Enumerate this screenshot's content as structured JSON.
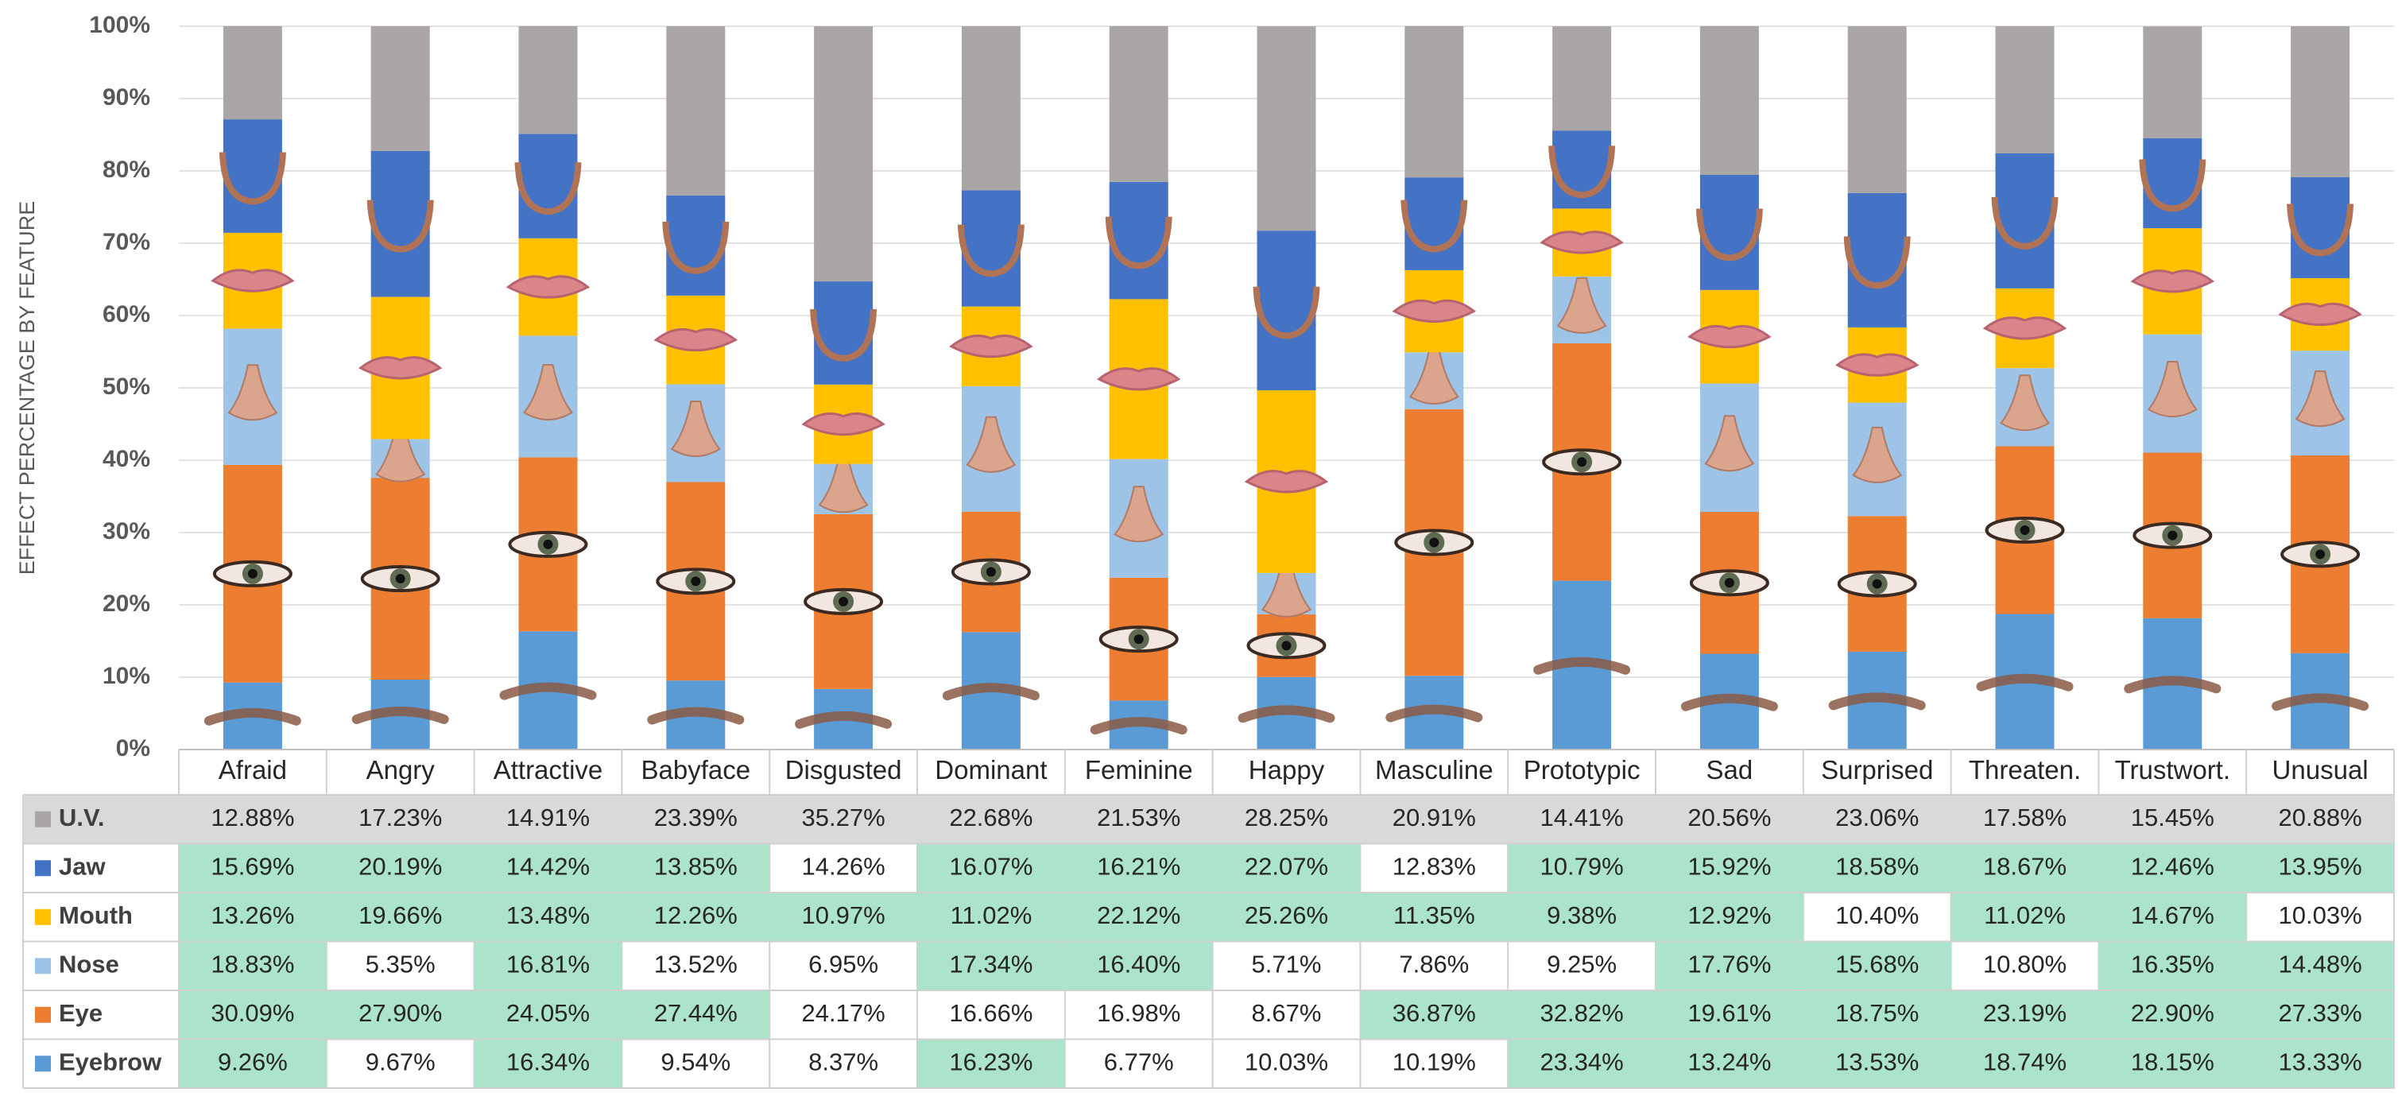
{
  "chart_data": {
    "type": "stacked_bar_100",
    "y_label": "EFFECT PERCENTAGE BY FEATURE",
    "categories": [
      "Afraid",
      "Angry",
      "Attractive",
      "Babyface",
      "Disgusted",
      "Dominant",
      "Feminine",
      "Happy",
      "Masculine",
      "Prototypic",
      "Sad",
      "Surprised",
      "Threaten.",
      "Trustwort.",
      "Unusual"
    ],
    "ylim": [
      0,
      100
    ],
    "yticks": [
      {
        "value": 0,
        "label": "0%"
      },
      {
        "value": 10,
        "label": "10%"
      },
      {
        "value": 20,
        "label": "20%"
      },
      {
        "value": 30,
        "label": "30%"
      },
      {
        "value": 40,
        "label": "40%"
      },
      {
        "value": 50,
        "label": "50%"
      },
      {
        "value": 60,
        "label": "60%"
      },
      {
        "value": 70,
        "label": "70%"
      },
      {
        "value": 80,
        "label": "80%"
      },
      {
        "value": 90,
        "label": "90%"
      },
      {
        "value": 100,
        "label": "100%"
      }
    ],
    "grid": true,
    "series": [
      {
        "name": "Eyebrow",
        "color": "#5b9bd5",
        "values": [
          9.26,
          9.67,
          16.34,
          9.54,
          8.37,
          16.23,
          6.77,
          10.03,
          10.19,
          23.34,
          13.24,
          13.53,
          18.74,
          18.15,
          13.33
        ],
        "value_labels": [
          "9.26%",
          "9.67%",
          "16.34%",
          "9.54%",
          "8.37%",
          "16.23%",
          "6.77%",
          "10.03%",
          "10.19%",
          "23.34%",
          "13.24%",
          "13.53%",
          "18.74%",
          "18.15%",
          "13.33%"
        ],
        "highlight": [
          true,
          false,
          true,
          false,
          false,
          true,
          false,
          false,
          false,
          true,
          true,
          true,
          true,
          true,
          true
        ]
      },
      {
        "name": "Eye",
        "color": "#ed7d31",
        "values": [
          30.09,
          27.9,
          24.05,
          27.44,
          24.17,
          16.66,
          16.98,
          8.67,
          36.87,
          32.82,
          19.61,
          18.75,
          23.19,
          22.9,
          27.33
        ],
        "value_labels": [
          "30.09%",
          "27.90%",
          "24.05%",
          "27.44%",
          "24.17%",
          "16.66%",
          "16.98%",
          "8.67%",
          "36.87%",
          "32.82%",
          "19.61%",
          "18.75%",
          "23.19%",
          "22.90%",
          "27.33%"
        ],
        "highlight": [
          true,
          true,
          true,
          true,
          false,
          false,
          false,
          false,
          true,
          true,
          true,
          true,
          true,
          true,
          true
        ]
      },
      {
        "name": "Nose",
        "color": "#9dc3e6",
        "values": [
          18.83,
          5.35,
          16.81,
          13.52,
          6.95,
          17.34,
          16.4,
          5.71,
          7.86,
          9.25,
          17.76,
          15.68,
          10.8,
          16.35,
          14.48
        ],
        "value_labels": [
          "18.83%",
          "5.35%",
          "16.81%",
          "13.52%",
          "6.95%",
          "17.34%",
          "16.40%",
          "5.71%",
          "7.86%",
          "9.25%",
          "17.76%",
          "15.68%",
          "10.80%",
          "16.35%",
          "14.48%"
        ],
        "highlight": [
          true,
          false,
          true,
          false,
          false,
          true,
          true,
          false,
          false,
          false,
          true,
          true,
          false,
          true,
          true
        ]
      },
      {
        "name": "Mouth",
        "color": "#ffc000",
        "values": [
          13.26,
          19.66,
          13.48,
          12.26,
          10.97,
          11.02,
          22.12,
          25.26,
          11.35,
          9.38,
          12.92,
          10.4,
          11.02,
          14.67,
          10.03
        ],
        "value_labels": [
          "13.26%",
          "19.66%",
          "13.48%",
          "12.26%",
          "10.97%",
          "11.02%",
          "22.12%",
          "25.26%",
          "11.35%",
          "9.38%",
          "12.92%",
          "10.40%",
          "11.02%",
          "14.67%",
          "10.03%"
        ],
        "highlight": [
          true,
          true,
          true,
          true,
          true,
          true,
          true,
          true,
          true,
          true,
          true,
          false,
          true,
          true,
          false
        ]
      },
      {
        "name": "Jaw",
        "color": "#4472c4",
        "values": [
          15.69,
          20.19,
          14.42,
          13.85,
          14.26,
          16.07,
          16.21,
          22.07,
          12.83,
          10.79,
          15.92,
          18.58,
          18.67,
          12.46,
          13.95
        ],
        "value_labels": [
          "15.69%",
          "20.19%",
          "14.42%",
          "13.85%",
          "14.26%",
          "16.07%",
          "16.21%",
          "22.07%",
          "12.83%",
          "10.79%",
          "15.92%",
          "18.58%",
          "18.67%",
          "12.46%",
          "13.95%"
        ],
        "highlight": [
          true,
          true,
          true,
          true,
          false,
          true,
          true,
          true,
          false,
          true,
          true,
          true,
          true,
          true,
          true
        ]
      },
      {
        "name": "U.V.",
        "color": "#aaa6a6",
        "values": [
          12.88,
          17.23,
          14.91,
          23.39,
          35.27,
          22.68,
          21.53,
          28.25,
          20.91,
          14.41,
          20.56,
          23.06,
          17.58,
          15.45,
          20.88
        ],
        "value_labels": [
          "12.88%",
          "17.23%",
          "14.91%",
          "23.39%",
          "35.27%",
          "22.68%",
          "21.53%",
          "28.25%",
          "20.91%",
          "14.41%",
          "20.56%",
          "23.06%",
          "17.58%",
          "15.45%",
          "20.88%"
        ],
        "highlight": [
          false,
          false,
          false,
          false,
          false,
          false,
          false,
          false,
          false,
          false,
          false,
          false,
          false,
          false,
          false
        ]
      }
    ]
  }
}
